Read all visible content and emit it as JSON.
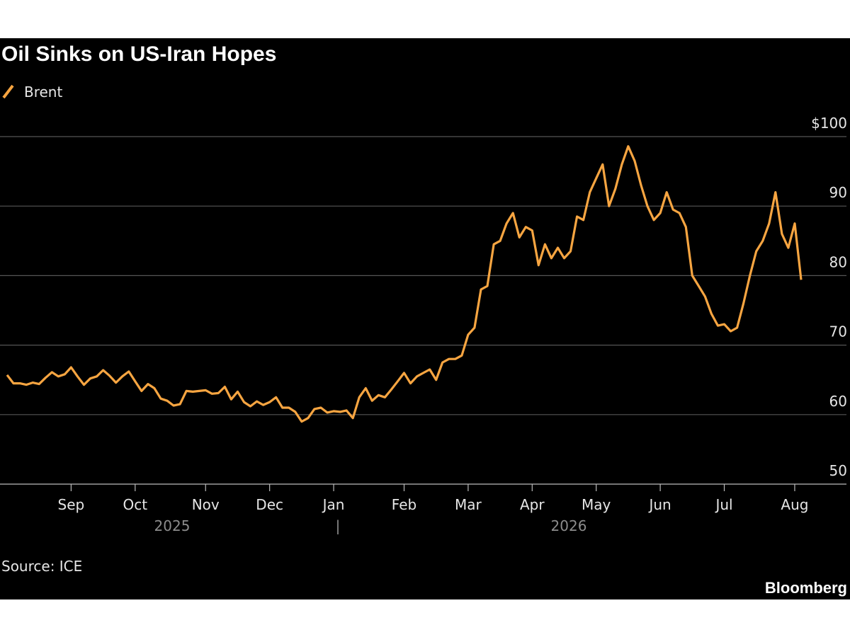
{
  "chart_data": {
    "type": "line",
    "title": "Oil Sinks on US-Iran Hopes",
    "source": "Source: ICE",
    "brand": "Bloomberg",
    "categories": [
      null,
      null,
      null,
      null,
      null,
      null,
      null,
      null,
      null,
      null,
      "Sep",
      null,
      null,
      null,
      null,
      null,
      null,
      null,
      null,
      null,
      "Oct",
      null,
      null,
      null,
      null,
      null,
      null,
      null,
      null,
      null,
      null,
      "Nov",
      null,
      null,
      null,
      null,
      null,
      null,
      null,
      null,
      null,
      "Dec",
      null,
      null,
      null,
      null,
      null,
      null,
      null,
      null,
      null,
      "Jan",
      null,
      null,
      null,
      null,
      null,
      null,
      null,
      null,
      null,
      null,
      "Feb",
      null,
      null,
      null,
      null,
      null,
      null,
      null,
      null,
      null,
      "Mar",
      null,
      null,
      null,
      null,
      null,
      null,
      null,
      null,
      null,
      "Apr",
      null,
      null,
      null,
      null,
      null,
      null,
      null,
      null,
      null,
      "May",
      null,
      null,
      null,
      null,
      null,
      null,
      null,
      null,
      null,
      "Jun",
      null,
      null,
      null,
      null,
      null,
      null,
      null,
      null,
      null,
      "Jul",
      null,
      null,
      null,
      null,
      null,
      null,
      null,
      null,
      null,
      null,
      "Aug",
      null
    ],
    "x_groups": [
      "2025",
      "2026"
    ],
    "x_group_separator": "|",
    "series": [
      {
        "name": "Brent",
        "color": "#f7a541",
        "values": [
          65.7,
          64.5,
          64.5,
          64.3,
          64.6,
          64.4,
          65.3,
          66.1,
          65.5,
          65.8,
          66.8,
          65.5,
          64.3,
          65.2,
          65.5,
          66.4,
          65.6,
          64.6,
          65.5,
          66.2,
          64.8,
          63.4,
          64.4,
          63.8,
          62.3,
          62.0,
          61.3,
          61.5,
          63.4,
          63.3,
          63.4,
          63.5,
          63.0,
          63.1,
          64.0,
          62.2,
          63.3,
          61.8,
          61.2,
          61.9,
          61.4,
          61.8,
          62.5,
          61.0,
          61.0,
          60.4,
          59.0,
          59.5,
          60.8,
          61.0,
          60.3,
          60.5,
          60.4,
          60.6,
          59.5,
          62.5,
          63.8,
          62.0,
          62.8,
          62.5,
          63.6,
          64.8,
          66.0,
          64.5,
          65.5,
          66.0,
          66.5,
          65.0,
          67.5,
          68.0,
          68.0,
          68.5,
          71.5,
          72.5,
          78.0,
          78.5,
          84.5,
          85.0,
          87.5,
          89.0,
          85.5,
          87.0,
          86.5,
          81.5,
          84.5,
          82.5,
          84.0,
          82.5,
          83.5,
          88.5,
          88.0,
          92.0,
          94.0,
          96.0,
          90.0,
          92.5,
          96.0,
          98.6,
          96.5,
          93.0,
          90.0,
          88.0,
          89.0,
          92.0,
          89.5,
          89.0,
          87.0,
          80.0,
          78.5,
          77.0,
          74.5,
          72.8,
          73.0,
          72.0,
          72.5,
          76.0,
          80.0,
          83.5,
          85.0,
          87.5,
          92.0,
          86.0,
          84.0,
          87.5,
          79.4
        ]
      }
    ],
    "ylim": [
      50,
      100
    ],
    "yticks": [
      50,
      60,
      70,
      80,
      90,
      {
        "value": 100,
        "label": "$100"
      }
    ],
    "grid": true
  }
}
